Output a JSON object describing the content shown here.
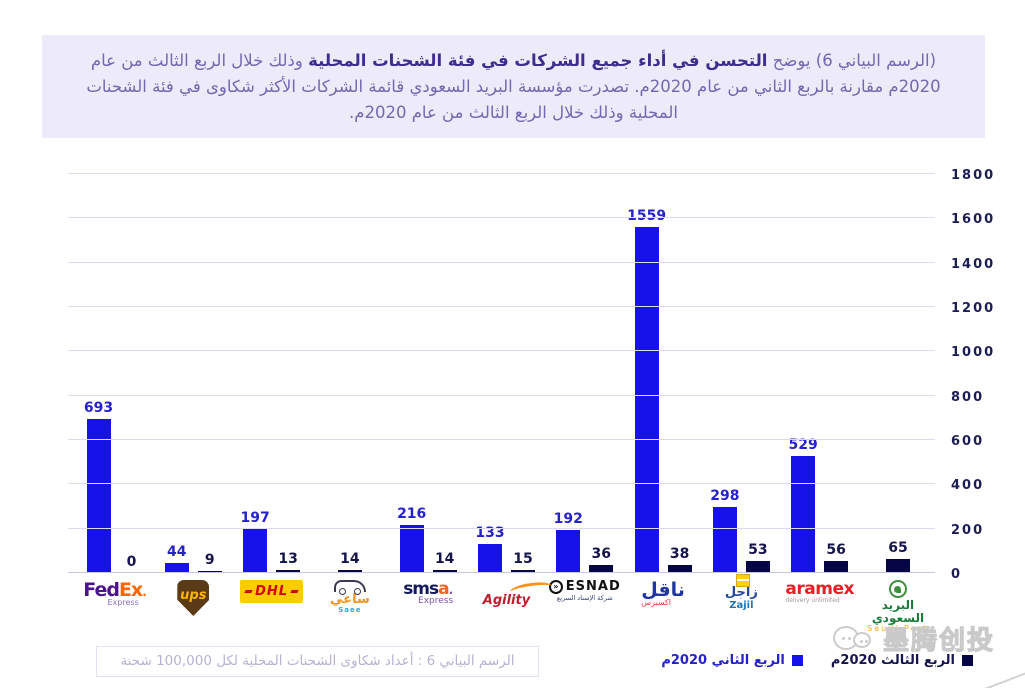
{
  "header": {
    "text_before_bold": "(الرسم البياني 6) يوضح ",
    "bold_text": "التحسن في أداء جميع الشركات في فئة الشحنات المحلية",
    "text_after_bold": " وذلك خلال الربع الثالث من عام 2020م مقارنة بالربع الثاني من عام 2020م. تصدرت مؤسسة البريد السعودي قائمة الشركات الأكثر شكاوى في فئة الشحنات المحلية وذلك خلال الربع الثالث من عام 2020م."
  },
  "caption": "الرسم البياني 6 : أعداد شكاوى الشحنات المحلية لكل 100,000 شحنة",
  "watermark_text": "墨腾创投",
  "colors": {
    "q2_bar": "#1712ea",
    "q2_label": "#2521cd",
    "q3_bar": "#060647",
    "q3_label": "#15154b",
    "header_bg": "#edeaf9",
    "header_text": "#7668b0",
    "header_bold": "#3f2d8e",
    "gridline": "#dcd9f0",
    "axis_label": "#1d1d55"
  },
  "chart_data": {
    "type": "bar",
    "categories": [
      "FedEx Express",
      "UPS",
      "DHL",
      "ساعي Saee",
      "SMSA Express",
      "Agility",
      "ESNAD Express",
      "ناقل Naqel",
      "زاجل Zajil",
      "Aramex",
      "البريد السعودي Saudi Post"
    ],
    "series": [
      {
        "name": "الربع الثاني 2020م",
        "key": "q2",
        "values": [
          693,
          44,
          197,
          null,
          216,
          133,
          192,
          1559,
          298,
          529,
          null
        ]
      },
      {
        "name": "الربع الثالث 2020م",
        "key": "q3",
        "values": [
          0,
          9,
          13,
          14,
          14,
          15,
          36,
          38,
          53,
          56,
          65
        ]
      }
    ],
    "ylim": [
      0,
      1800
    ],
    "yticks": [
      0,
      200,
      400,
      600,
      800,
      1000,
      1200,
      1400,
      1600,
      1800
    ],
    "grid": true,
    "legend_position": "bottom-right"
  },
  "logos": [
    {
      "type": "fedex",
      "fed": "Fed",
      "ex": "Ex",
      "dot": ".",
      "sub": "Express"
    },
    {
      "type": "ups",
      "text": "ups"
    },
    {
      "type": "dhl",
      "text": "DHL"
    },
    {
      "type": "saee",
      "ar": "ساعي",
      "en": "Saee"
    },
    {
      "type": "smsa",
      "main": "sms",
      "a": "a",
      "dot": ".",
      "sub": "Express"
    },
    {
      "type": "agility",
      "text": "Agility"
    },
    {
      "type": "esnad",
      "icon": "»",
      "main": "ESNAD",
      "sub": "شركة الإسناد السريع"
    },
    {
      "type": "naqel",
      "ar": "ناقل",
      "sub": "اكسبرس"
    },
    {
      "type": "zajil",
      "ar": "زاجل",
      "en": "Zajil"
    },
    {
      "type": "aramex",
      "main": "aramex",
      "sub": "delivery unlimited"
    },
    {
      "type": "saudipost",
      "ar": "البريد السعودي",
      "en": "Saudi Post"
    }
  ]
}
